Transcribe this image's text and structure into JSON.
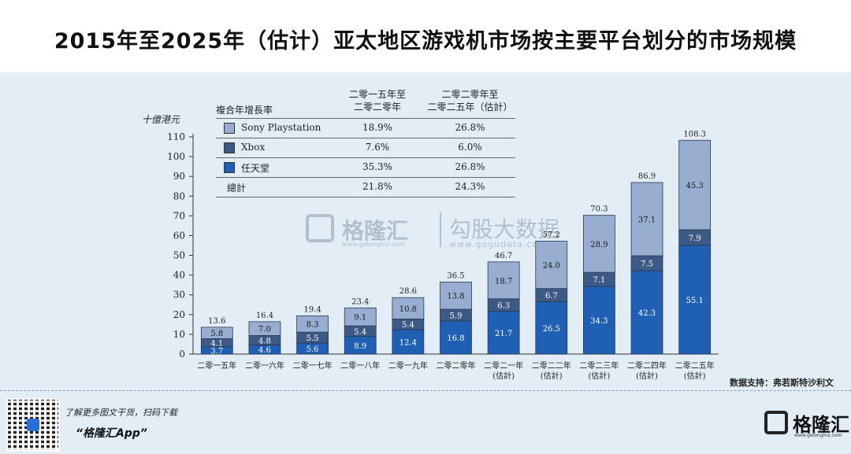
{
  "title": "2015年至2025年（估计）亚太地区游戏机市场按主要平台划分的市场规模",
  "chart_data": {
    "type": "bar",
    "stacked": true,
    "unit_label": "十億港元",
    "categories": [
      [
        "二零一五年"
      ],
      [
        "二零一六年"
      ],
      [
        "二零一七年"
      ],
      [
        "二零一八年"
      ],
      [
        "二零一九年"
      ],
      [
        "二零二零年"
      ],
      [
        "二零二一年",
        "(估計)"
      ],
      [
        "二零二二年",
        "(估計)"
      ],
      [
        "二零二三年",
        "(估計)"
      ],
      [
        "二零二四年",
        "(估計)"
      ],
      [
        "二零二五年",
        "(估計)"
      ]
    ],
    "series": [
      {
        "name": "任天堂",
        "color": "#1f5fb4",
        "label_color": "#ffffff",
        "values": [
          3.7,
          4.6,
          5.6,
          8.9,
          12.4,
          16.8,
          21.7,
          26.5,
          34.3,
          42.3,
          55.1
        ]
      },
      {
        "name": "Xbox",
        "color": "#3d5a86",
        "label_color": "#ffffff",
        "values": [
          4.1,
          4.8,
          5.5,
          5.4,
          5.4,
          5.9,
          6.3,
          6.7,
          7.1,
          7.5,
          7.9
        ]
      },
      {
        "name": "Sony Playstation",
        "color": "#97aed0",
        "label_color": "#1a1a1a",
        "values": [
          5.8,
          7.0,
          8.3,
          9.1,
          10.8,
          13.8,
          18.7,
          24.0,
          28.9,
          37.1,
          45.3
        ]
      }
    ],
    "totals": [
      13.6,
      16.4,
      19.4,
      23.4,
      28.6,
      36.5,
      46.7,
      57.2,
      70.3,
      86.9,
      108.3
    ],
    "ylim": [
      0,
      110
    ],
    "yticks": [
      0,
      10,
      20,
      30,
      40,
      50,
      60,
      70,
      80,
      90,
      100,
      110
    ],
    "grid": false,
    "legend_table": {
      "header_label": "複合年增長率",
      "col1_header": [
        "二零一五年至",
        "二零二零年"
      ],
      "col2_header": [
        "二零二零年至",
        "二零二五年（估計）"
      ],
      "rows": [
        {
          "name": "Sony Playstation",
          "color": "#97aed0",
          "v1": "18.9%",
          "v2": "26.8%"
        },
        {
          "name": "Xbox",
          "color": "#3d5a86",
          "v1": "7.6%",
          "v2": "6.0%"
        },
        {
          "name": "任天堂",
          "color": "#1f5fb4",
          "v1": "35.3%",
          "v2": "26.8%"
        }
      ],
      "total_row": {
        "name": "總計",
        "v1": "21.8%",
        "v2": "24.3%"
      }
    }
  },
  "source": "数据支持：弗若斯特沙利文",
  "watermark": {
    "name": "格隆汇",
    "domain": "www.gelonghui.com",
    "name2": "勾股大数据",
    "domain2": "www.gogudata.com"
  },
  "footer": {
    "prompt": "了解更多图文干货，扫码下载",
    "app_name": "“格隆汇App”",
    "brand_name": "格隆汇",
    "brand_domain": "www.gelonghui.com"
  }
}
